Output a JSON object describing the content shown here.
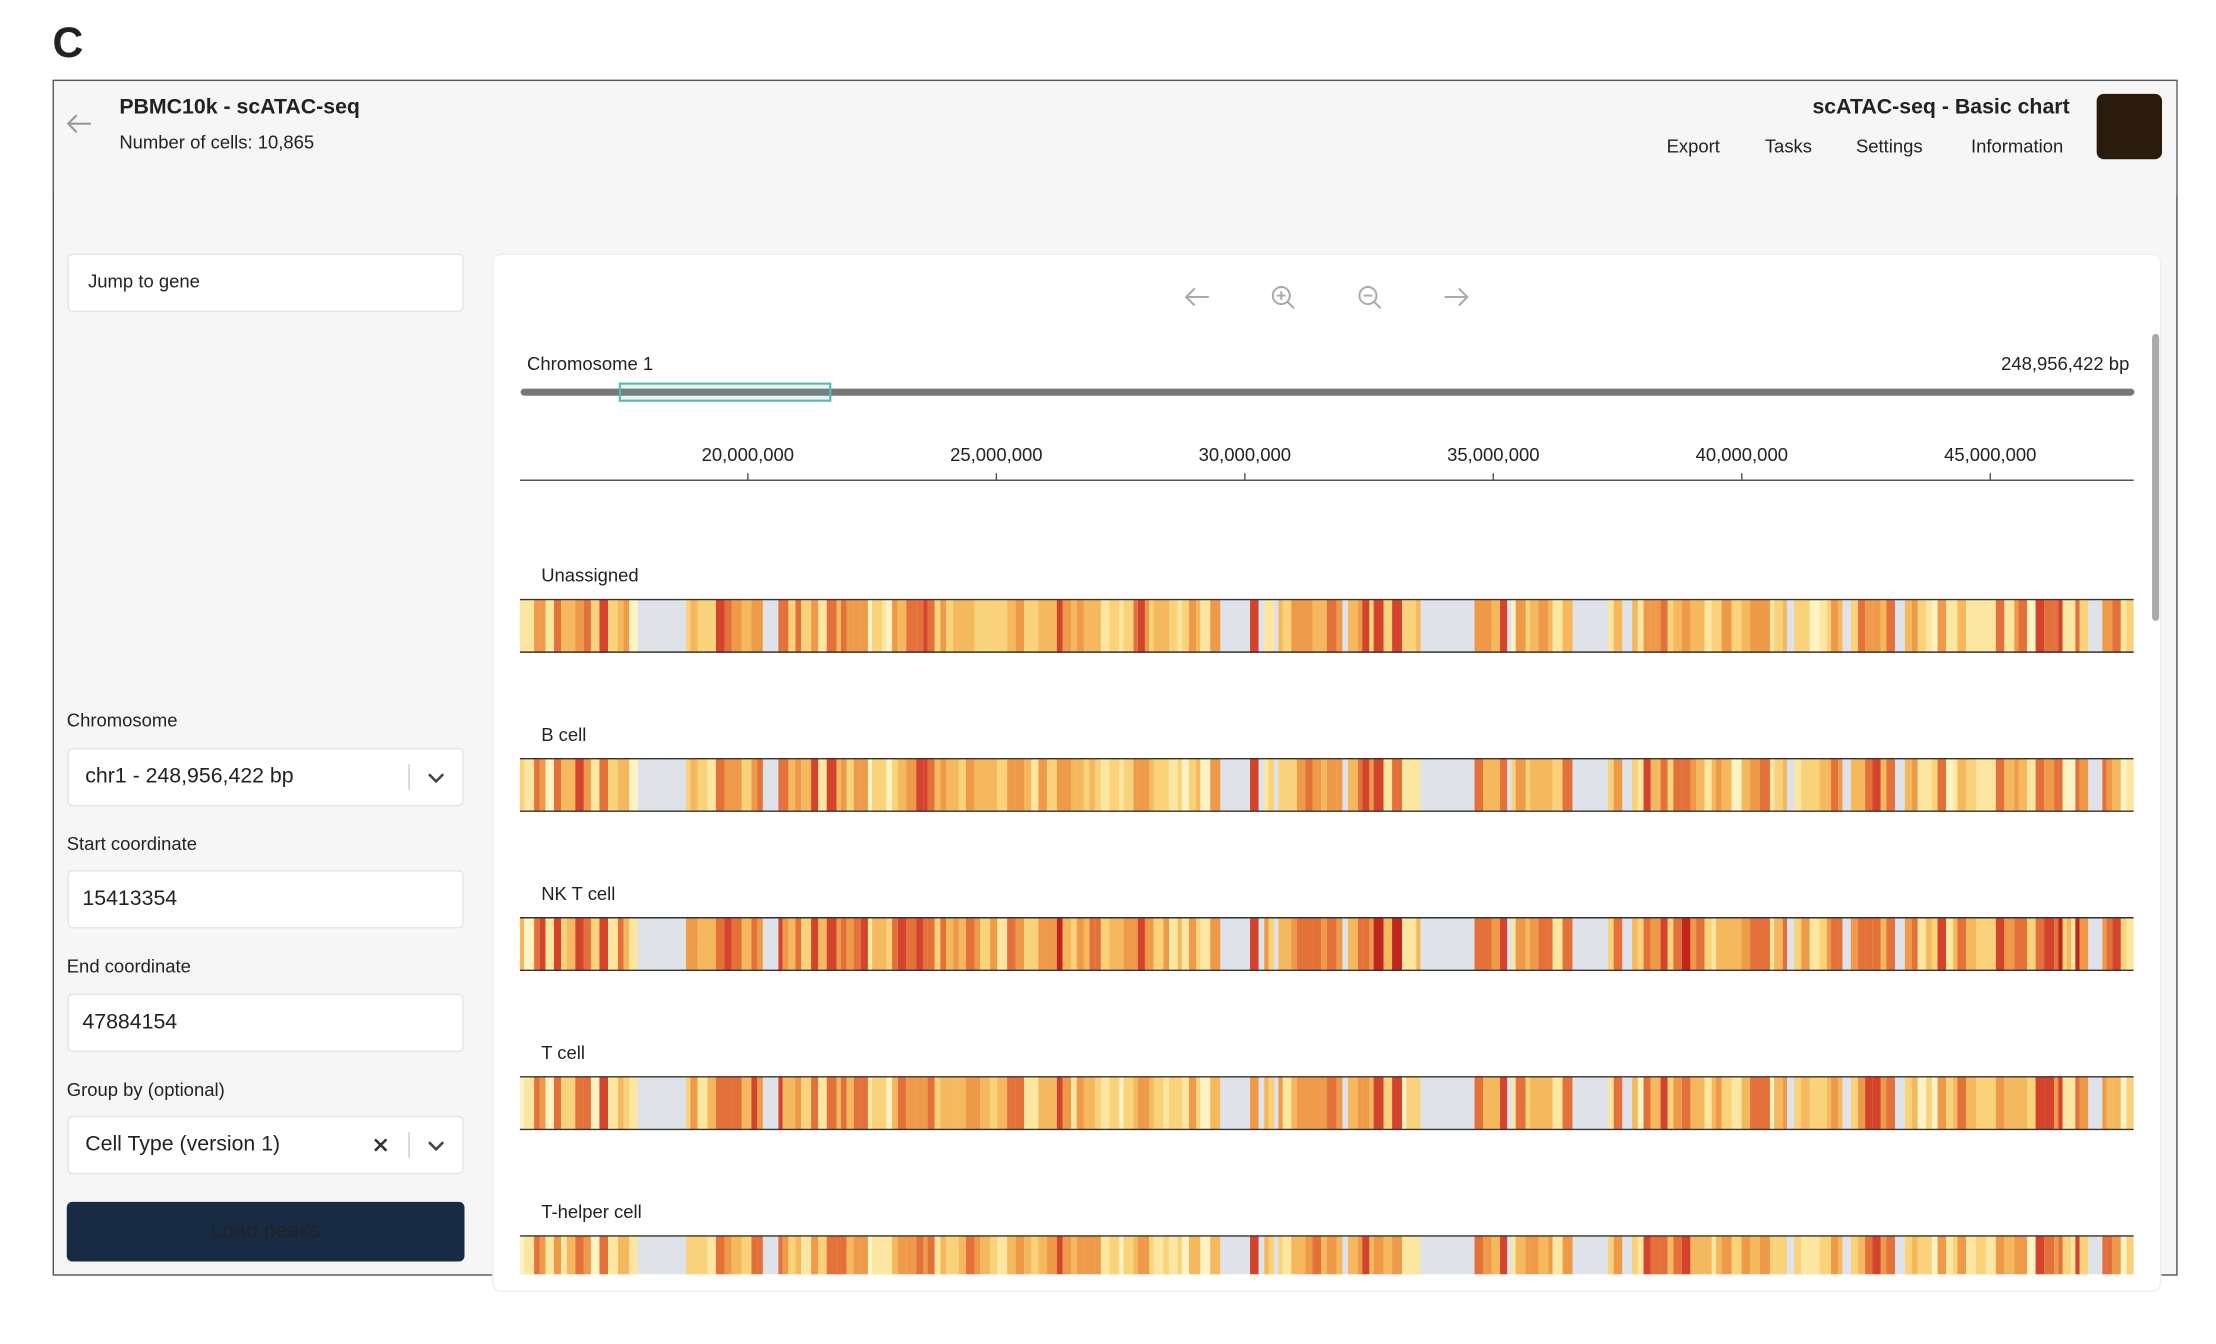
{
  "panel_label": "C",
  "header": {
    "title": "PBMC10k - scATAC-seq",
    "subtitle": "Number of cells: 10,865",
    "chart_title": "scATAC-seq - Basic chart",
    "menu": [
      "Export",
      "Tasks",
      "Settings",
      "Information"
    ]
  },
  "left_panel": {
    "search_placeholder": "Jump to gene",
    "chromosome": {
      "label": "Chromosome",
      "selected": "chr1 - 248,956,422 bp"
    },
    "start_coordinate": {
      "label": "Start coordinate",
      "value": 15413354
    },
    "end_coordinate": {
      "label": "End coordinate",
      "value": 47884154
    },
    "group_by": {
      "label": "Group by (optional)",
      "selected": "Cell Type (version 1)"
    },
    "button": "Load peaks"
  },
  "browser": {
    "chromosome": "Chromosome 1",
    "length": {
      "value": 248956422,
      "label": "248,956,422 bp"
    },
    "xticks": [
      {
        "value": 20000000,
        "label": "20,000,000"
      },
      {
        "value": 25000000,
        "label": "25,000,000"
      },
      {
        "value": 30000000,
        "label": "30,000,000"
      },
      {
        "value": 35000000,
        "label": "35,000,000"
      },
      {
        "value": 40000000,
        "label": "40,000,000"
      },
      {
        "value": 45000000,
        "label": "45,000,000"
      }
    ],
    "tracks": [
      "Unassigned",
      "B cell",
      "NK T cell",
      "T cell",
      "T-helper cell"
    ]
  }
}
